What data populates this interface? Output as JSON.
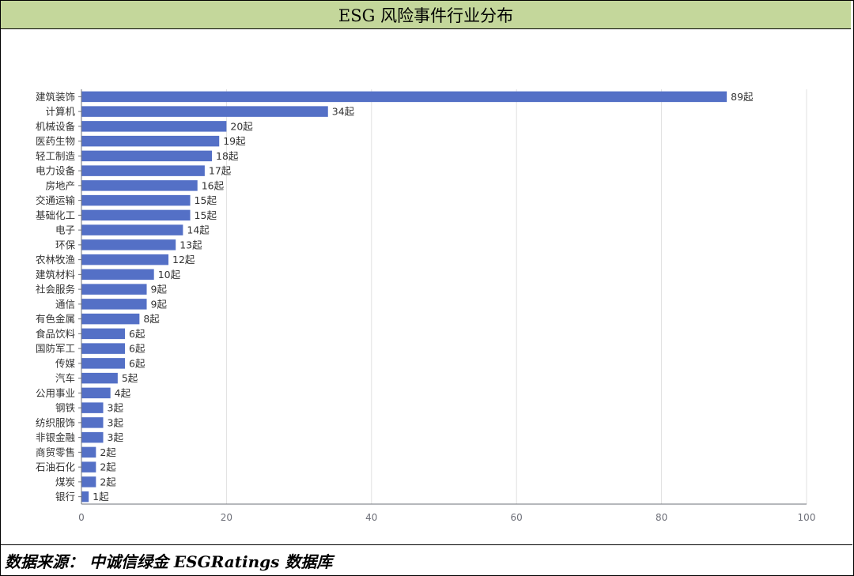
{
  "header": {
    "title": "ESG 风险事件行业分布"
  },
  "footer": {
    "source": "数据来源：  中诚信绿金 ESGRatings 数据库"
  },
  "colors": {
    "bar": "#5470c6",
    "grid": "#e0e0e0",
    "axis": "#6e7079",
    "header_bg": "#c4d79b"
  },
  "chart_data": {
    "type": "bar",
    "orientation": "horizontal",
    "categories": [
      "建筑装饰",
      "计算机",
      "机械设备",
      "医药生物",
      "轻工制造",
      "电力设备",
      "房地产",
      "交通运输",
      "基础化工",
      "电子",
      "环保",
      "农林牧渔",
      "建筑材料",
      "社会服务",
      "通信",
      "有色金属",
      "食品饮料",
      "国防军工",
      "传媒",
      "汽车",
      "公用事业",
      "钢铁",
      "纺织服饰",
      "非银金融",
      "商贸零售",
      "石油石化",
      "煤炭",
      "银行"
    ],
    "values": [
      89,
      34,
      20,
      19,
      18,
      17,
      16,
      15,
      15,
      14,
      13,
      12,
      10,
      9,
      9,
      8,
      6,
      6,
      6,
      5,
      4,
      3,
      3,
      3,
      2,
      2,
      2,
      1
    ],
    "data_labels": [
      "89起",
      "34起",
      "20起",
      "19起",
      "18起",
      "17起",
      "16起",
      "15起",
      "15起",
      "14起",
      "13起",
      "12起",
      "10起",
      "9起",
      "9起",
      "8起",
      "6起",
      "6起",
      "6起",
      "5起",
      "4起",
      "3起",
      "3起",
      "3起",
      "2起",
      "2起",
      "2起",
      "1起"
    ],
    "x_ticks": [
      "0",
      "20",
      "40",
      "60",
      "80",
      "100"
    ],
    "xlim": [
      0,
      100
    ],
    "grid": "vertical",
    "legend": "none"
  }
}
